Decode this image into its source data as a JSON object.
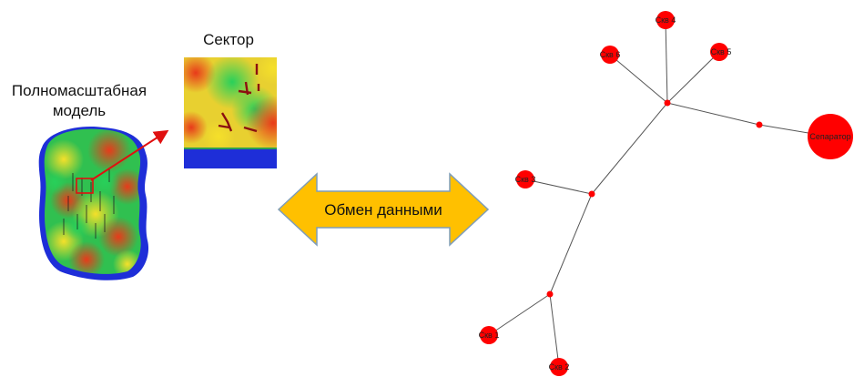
{
  "left": {
    "full_scale_model_label": "Полномасштабная модель",
    "sector_label": "Сектор"
  },
  "center": {
    "exchange_label": "Обмен данными",
    "arrow_fill": "#FFC000",
    "arrow_stroke": "#7F9DB9"
  },
  "network": {
    "wells": [
      {
        "id": "skv4",
        "label": "Скв 4"
      },
      {
        "id": "skv6",
        "label": "Скв 6"
      },
      {
        "id": "skv5",
        "label": "Скв 5"
      },
      {
        "id": "skv3",
        "label": "Скв 3"
      },
      {
        "id": "skv1",
        "label": "Скв 1"
      },
      {
        "id": "skv2",
        "label": "Скв 2"
      }
    ],
    "separator_label": "Сепаратор",
    "node_color": "#FF0000",
    "edge_color": "#555555"
  },
  "colors": {
    "grid_blue": "#1E2ED8",
    "pointer_arrow": "#E01010"
  }
}
